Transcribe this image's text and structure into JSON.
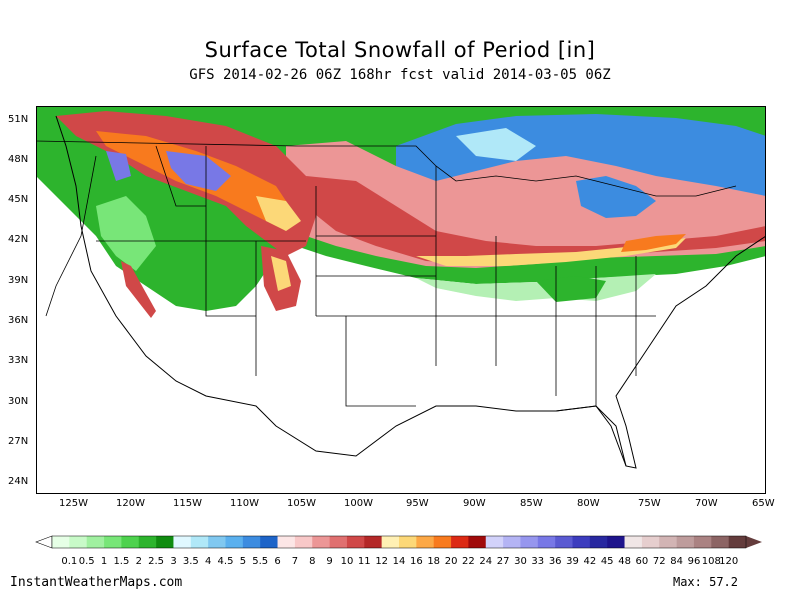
{
  "title": "Surface Total Snowfall of Period [in]",
  "subtitle": "GFS 2014-02-26 06Z 168hr fcst valid 2014-03-05 06Z",
  "lat_labels": [
    "51N",
    "48N",
    "45N",
    "42N",
    "39N",
    "36N",
    "33N",
    "30N",
    "27N",
    "24N"
  ],
  "lon_labels": [
    "125W",
    "120W",
    "115W",
    "110W",
    "105W",
    "100W",
    "95W",
    "90W",
    "85W",
    "80W",
    "75W",
    "70W",
    "65W"
  ],
  "legend": {
    "labels": [
      "0.1",
      "0.5",
      "1",
      "1.5",
      "2",
      "2.5",
      "3",
      "3.5",
      "4",
      "4.5",
      "5",
      "5.5",
      "6",
      "7",
      "8",
      "9",
      "10",
      "11",
      "12",
      "14",
      "16",
      "18",
      "20",
      "22",
      "24",
      "27",
      "30",
      "33",
      "36",
      "39",
      "42",
      "45",
      "48",
      "60",
      "72",
      "84",
      "96",
      "108",
      "120"
    ],
    "colors": [
      "#e6ffe6",
      "#c8fac8",
      "#a0f0a0",
      "#78e678",
      "#4ed24e",
      "#2db42d",
      "#108c10",
      "#e0f8ff",
      "#b0e8f8",
      "#80c8f0",
      "#5ab0ee",
      "#3c8ce0",
      "#1e64c8",
      "#fce6e6",
      "#f8c8c8",
      "#ec9696",
      "#e07070",
      "#d04848",
      "#b42828",
      "#fff0b4",
      "#fcd878",
      "#fca846",
      "#f87a1e",
      "#dc2a14",
      "#a00a0a",
      "#d2d2fa",
      "#b4b4f4",
      "#9696ee",
      "#7878e6",
      "#5a5ad2",
      "#3c3cbe",
      "#2828a0",
      "#1e148c",
      "#f0e6e6",
      "#e6cece",
      "#d2b4b4",
      "#be9c9c",
      "#aa8282",
      "#8c6464",
      "#643c3c"
    ]
  },
  "credit": "InstantWeatherMaps.com",
  "max_label": "Max:  57.2",
  "map_colors": {
    "light_green": "#b4f0b4",
    "green": "#2db42d",
    "dark_green": "#108c10",
    "blue": "#3c8ce0",
    "light_blue": "#b0e8f8",
    "pink": "#ec9696",
    "red": "#d04848",
    "yellow": "#fcd878",
    "orange": "#f87a1e",
    "purple": "#7878e6"
  }
}
